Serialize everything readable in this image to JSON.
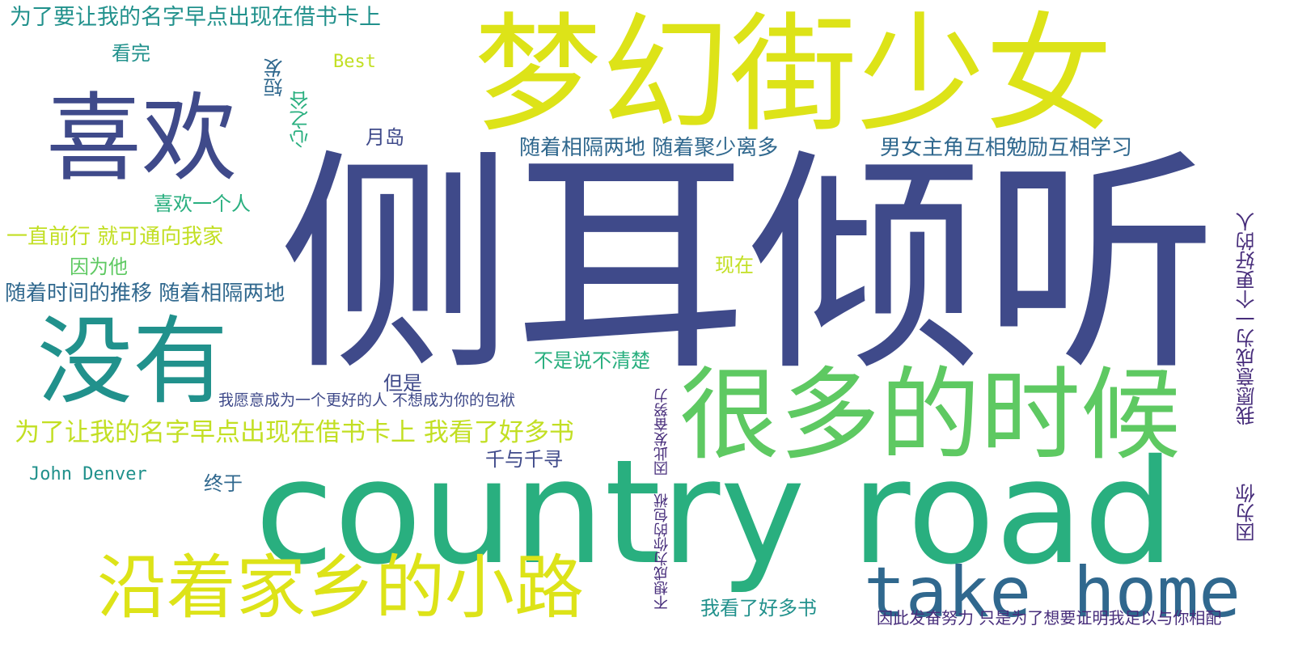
{
  "words": {
    "ceer": "侧耳倾听",
    "menghuan": "梦幻街少女",
    "country": "country road",
    "henduo": "很多的时候",
    "xihuan": "喜欢",
    "meiyou": "没有",
    "yanzhe": "沿着家乡的小路",
    "takehome": "take home",
    "weile1": "为了要让我的名字早点出现在借书卡上",
    "kanwan": "看完",
    "best": "Best",
    "duanfa": "短发",
    "xinzhigu": "心之谷",
    "yuedao": "月岛",
    "suizhe1": "随着相隔两地 随着聚少离多",
    "nannv": "男女主角互相勉励互相学习",
    "xihuanyige": "喜欢一个人",
    "yizhi": "一直前行 就可通向我家",
    "yinwei": "因为他",
    "suizhe2": "随着时间的推移 随着相隔两地",
    "xianzai": "现在",
    "bushi": "不是说不清楚",
    "danshi": "但是",
    "woyuanyi1": "我愿意成为一个更好的人 不想成为你的包袱",
    "weile2": "为了让我的名字早点出现在借书卡上 我看了好多书",
    "qianyu": "千与千寻",
    "john": "John Denver",
    "zhongyu": "终于",
    "wokan2": "我看了好多书",
    "yinci2": "因此发奋努力 只是为了想要证明我足以与你相配",
    "buxiang": "不想成为你的包袱",
    "yinci1": "因此发奋努力",
    "woyuanyi2": "我愿意成为一个更好的人",
    "yinweini": "因为你"
  },
  "colors": {
    "indigo": "#3f4a8a",
    "blue_teal": "#30688e",
    "teal": "#21918c",
    "green_teal": "#29af7f",
    "green": "#5ec962",
    "lime": "#c2df23",
    "yellow": "#dde318",
    "purple": "#472d7b",
    "background": "#ffffff"
  }
}
